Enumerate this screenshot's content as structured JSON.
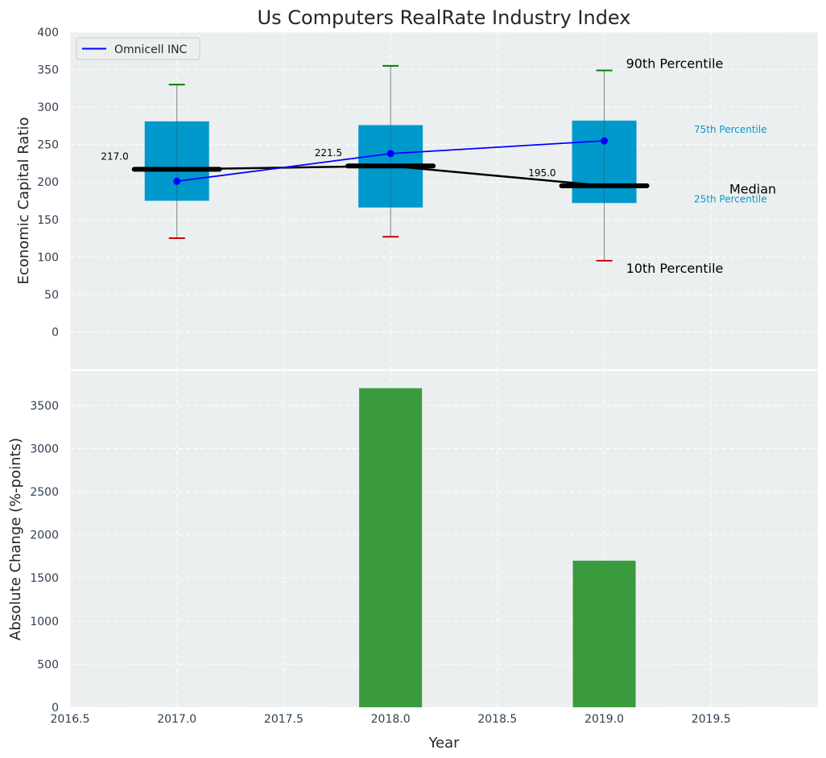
{
  "chart_data": [
    {
      "type": "box",
      "title": "Us Computers RealRate Industry Index",
      "xlabel": "",
      "ylabel": "Economic Capital Ratio",
      "ylim": [
        -50,
        400
      ],
      "yticks": [
        0,
        50,
        100,
        150,
        200,
        250,
        300,
        350,
        400
      ],
      "grid": true,
      "legend": {
        "position": "top-left",
        "entries": [
          "Omnicell INC"
        ]
      },
      "boxes": [
        {
          "x": 2017.0,
          "p10": 125,
          "p25": 175,
          "median": 217.0,
          "p75": 281,
          "p90": 330
        },
        {
          "x": 2018.0,
          "p10": 127,
          "p25": 166,
          "median": 221.5,
          "p75": 276,
          "p90": 355
        },
        {
          "x": 2019.0,
          "p10": 95,
          "p25": 172,
          "median": 195.0,
          "p75": 282,
          "p90": 349
        }
      ],
      "median_labels": [
        "217.0",
        "221.5",
        "195.0"
      ],
      "series": [
        {
          "name": "Omnicell INC",
          "color": "#0000ff",
          "x": [
            2017.0,
            2018.0,
            2019.0
          ],
          "values": [
            201,
            238,
            255
          ]
        }
      ],
      "annotations": {
        "p90": "90th Percentile",
        "p75": "75th Percentile",
        "median": "Median",
        "p25": "25th Percentile",
        "p10": "10th Percentile"
      },
      "colors": {
        "box": "#0099cc",
        "whisker_top": "#008000",
        "whisker_bottom": "#cc0000",
        "median": "#000000",
        "background": "#eceff0"
      }
    },
    {
      "type": "bar",
      "xlabel": "Year",
      "ylabel": "Absolute Change (%-points)",
      "xlim": [
        2016.5,
        2020.0
      ],
      "xticks": [
        "2016.5",
        "2017.0",
        "2017.5",
        "2018.0",
        "2018.5",
        "2019.0",
        "2019.5"
      ],
      "ylim": [
        0,
        3900
      ],
      "yticks": [
        0,
        500,
        1000,
        1500,
        2000,
        2500,
        3000,
        3500
      ],
      "grid": true,
      "x": [
        2018.0,
        2019.0
      ],
      "values": [
        3700,
        1700
      ],
      "color": "#3a9a3e"
    }
  ]
}
